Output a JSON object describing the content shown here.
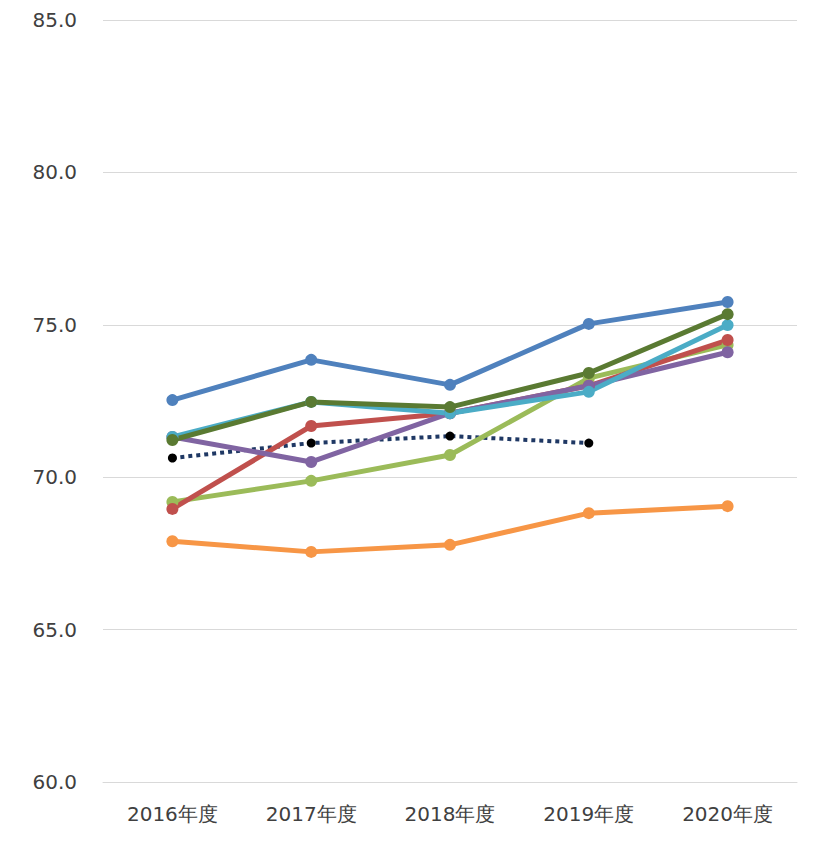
{
  "chart_data": {
    "type": "line",
    "categories": [
      "2016年度",
      "2017年度",
      "2018年度",
      "2019年度",
      "2020年度"
    ],
    "ylim": [
      60,
      85
    ],
    "yticks": [
      {
        "value": 60,
        "label": "60.0"
      },
      {
        "value": 65,
        "label": "65.0"
      },
      {
        "value": 70,
        "label": "70.0"
      },
      {
        "value": 75,
        "label": "75.0"
      },
      {
        "value": 80,
        "label": "80.0"
      },
      {
        "value": 85,
        "label": "85.0"
      }
    ],
    "grid": true,
    "marker": "circle",
    "series": [
      {
        "color": "#f79646",
        "line_style": "solid",
        "values": [
          67.9,
          67.55,
          67.78,
          68.82,
          69.05
        ]
      },
      {
        "color": "#1f3864",
        "line_style": "dotted",
        "values": [
          70.63,
          71.12,
          71.35,
          71.12,
          null
        ]
      },
      {
        "color": "#9bbb59",
        "line_style": "solid",
        "values": [
          69.19,
          69.88,
          70.73,
          73.25,
          74.34
        ]
      },
      {
        "color": "#c0504d",
        "line_style": "solid",
        "values": [
          68.96,
          71.68,
          72.1,
          73.0,
          74.5
        ]
      },
      {
        "color": "#8064a2",
        "line_style": "solid",
        "values": [
          71.32,
          70.5,
          72.1,
          73.0,
          74.1
        ]
      },
      {
        "color": "#4bacc6",
        "line_style": "solid",
        "values": [
          71.32,
          72.47,
          72.1,
          72.8,
          74.99
        ]
      },
      {
        "color": "#5a7a32",
        "line_style": "solid",
        "values": [
          71.22,
          72.47,
          72.3,
          73.42,
          75.35
        ]
      },
      {
        "color": "#4f81bd",
        "line_style": "solid",
        "values": [
          72.53,
          73.85,
          73.03,
          75.03,
          75.75
        ]
      }
    ]
  }
}
